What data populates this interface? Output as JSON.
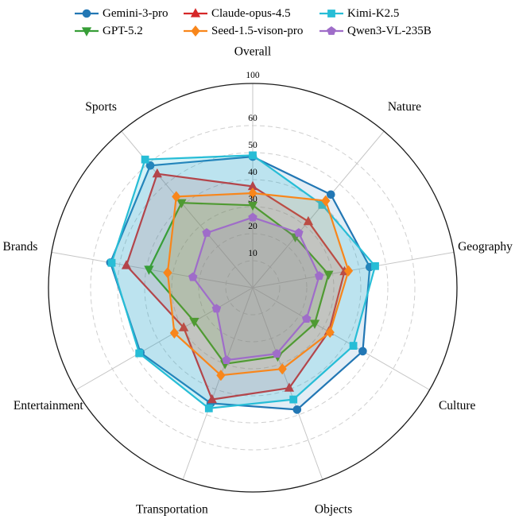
{
  "chart_data": {
    "type": "radar",
    "categories": [
      "Overall",
      "Nature",
      "Geography",
      "Culture",
      "Objects",
      "Transportation",
      "Entertainment",
      "Brands",
      "Sports"
    ],
    "radial_ticks": [
      10,
      20,
      30,
      40,
      50,
      60
    ],
    "outer_ring_label": 100,
    "rlim": [
      0,
      100
    ],
    "grid": "dashed-circles",
    "legend_position": "top",
    "legend_columns": 3,
    "series": [
      {
        "name": "Gemini-3-pro",
        "color": "#2277b4",
        "marker": "circle",
        "values": [
          48.5,
          45,
          44,
          47,
          48,
          45.5,
          48,
          53.5,
          59
        ]
      },
      {
        "name": "Claude-opus-4.5",
        "color": "#d62728",
        "marker": "triangle-up",
        "values": [
          37.5,
          32,
          34.5,
          32.5,
          39.5,
          44,
          29.5,
          47.5,
          55
        ]
      },
      {
        "name": "Kimi-K2.5",
        "color": "#27bdd6",
        "marker": "square",
        "values": [
          49,
          40,
          46,
          43,
          44,
          47.5,
          48.5,
          53,
          65
        ]
      },
      {
        "name": "GPT-5.2",
        "color": "#379e37",
        "marker": "triangle-down",
        "values": [
          30.5,
          24.5,
          28.5,
          26.5,
          27,
          30,
          25,
          39,
          41
        ]
      },
      {
        "name": "Seed-1.5-vison-pro",
        "color": "#f8861b",
        "marker": "diamond",
        "values": [
          35,
          42,
          36,
          33,
          32,
          34.5,
          33.5,
          32,
          44
        ]
      },
      {
        "name": "Qwen3-VL-235B",
        "color": "#9f6dc9",
        "marker": "pentagon",
        "values": [
          26,
          26.5,
          25,
          23,
          26,
          28.5,
          15.5,
          22.5,
          26.5
        ]
      }
    ]
  }
}
